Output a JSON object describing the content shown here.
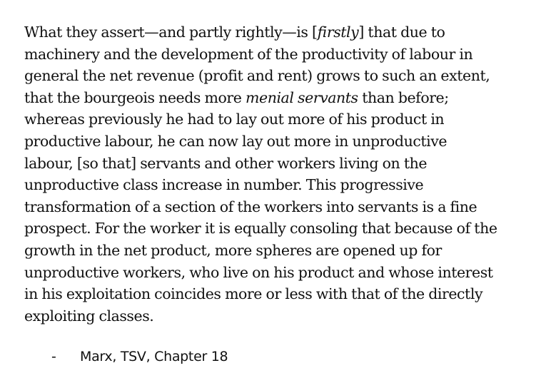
{
  "quote": {
    "l01_a": "What they assert—and partly rightly—is [",
    "l01_em": "firstly",
    "l01_b": "] that due to",
    "l02": "machinery and the development of the productivity of labour in",
    "l03": "general the net revenue (profit and rent) grows to such an extent,",
    "l04_a": "that the bourgeois needs more ",
    "l04_em": "menial servants",
    "l04_b": " than before;",
    "l05": "whereas previously he had to lay out more of his product in",
    "l06": "productive labour, he can now lay out more in unproductive",
    "l07": "labour, [so that] servants and other workers living on the",
    "l08": "unproductive class increase in number.  This progressive",
    "l09": "transformation of a section of the workers into servants is a fine",
    "l10": "prospect.  For the worker it is equally consoling that because of the",
    "l11": "growth in the net product, more spheres are opened up for",
    "l12": "unproductive workers, who live on his product and whose interest",
    "l13": "in his exploitation coincides more or less with that of the directly",
    "l14": "exploiting classes."
  },
  "attribution": {
    "dash": "-",
    "source": "Marx, TSV, Chapter 18"
  }
}
